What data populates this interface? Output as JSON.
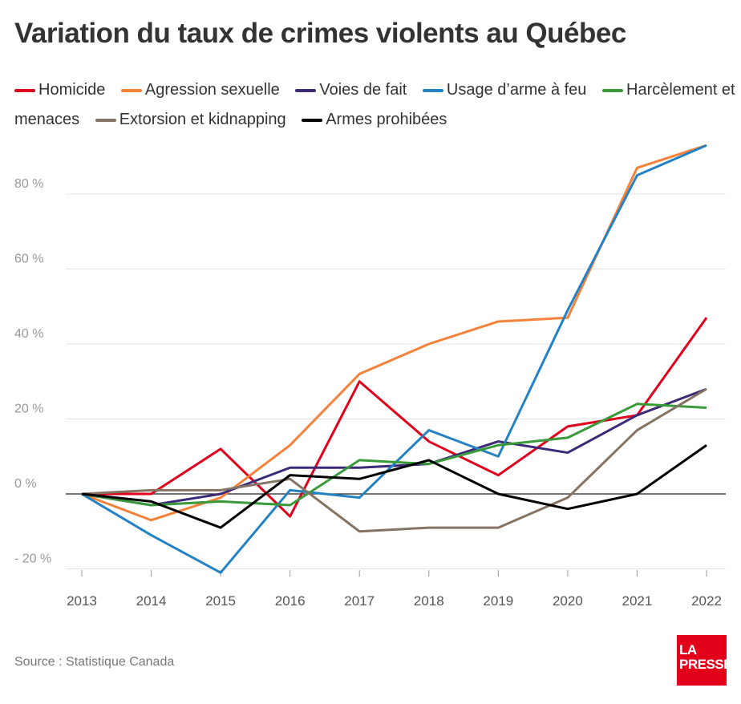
{
  "chart_data": {
    "type": "line",
    "title": "Variation du taux de crimes violents au Québec",
    "x": [
      "2013",
      "2014",
      "2015",
      "2016",
      "2017",
      "2018",
      "2019",
      "2020",
      "2021",
      "2022"
    ],
    "ylim": [
      -20,
      95
    ],
    "yticks": [
      -20,
      0,
      20,
      40,
      60,
      80
    ],
    "ytick_labels": [
      "- 20 %",
      "0 %",
      "20 %",
      "40 %",
      "60 %",
      "80 %"
    ],
    "grid": true,
    "legend_position": "top",
    "series": [
      {
        "name": "Homicide",
        "color": "#e0001b",
        "values": [
          0,
          0,
          12,
          -6,
          30,
          14,
          5,
          18,
          21,
          47
        ]
      },
      {
        "name": "Agression sexuelle",
        "color": "#f5813a",
        "values": [
          0,
          -7,
          -1,
          13,
          32,
          40,
          46,
          47,
          87,
          93
        ]
      },
      {
        "name": "Voies de fait",
        "color": "#3c2a78",
        "values": [
          0,
          -3,
          0,
          7,
          7,
          8,
          14,
          11,
          21,
          28
        ]
      },
      {
        "name": "Usage d’arme à feu",
        "color": "#2382c3",
        "values": [
          0,
          -11,
          -21,
          1,
          -1,
          17,
          10,
          49,
          85,
          93
        ]
      },
      {
        "name": "Harcèlement et menaces",
        "color": "#3a9a3a",
        "values": [
          0,
          -3,
          -2,
          -3,
          9,
          8,
          13,
          15,
          24,
          23
        ]
      },
      {
        "name": "Extorsion et kidnapping",
        "color": "#857464",
        "values": [
          0,
          1,
          1,
          4,
          -10,
          -9,
          -9,
          -1,
          17,
          28
        ]
      },
      {
        "name": "Armes prohibées",
        "color": "#000000",
        "values": [
          0,
          -2,
          -9,
          5,
          4,
          9,
          0,
          -4,
          0,
          13
        ]
      }
    ]
  },
  "source": "Source : Statistique Canada",
  "logo": "LA PRESSE"
}
